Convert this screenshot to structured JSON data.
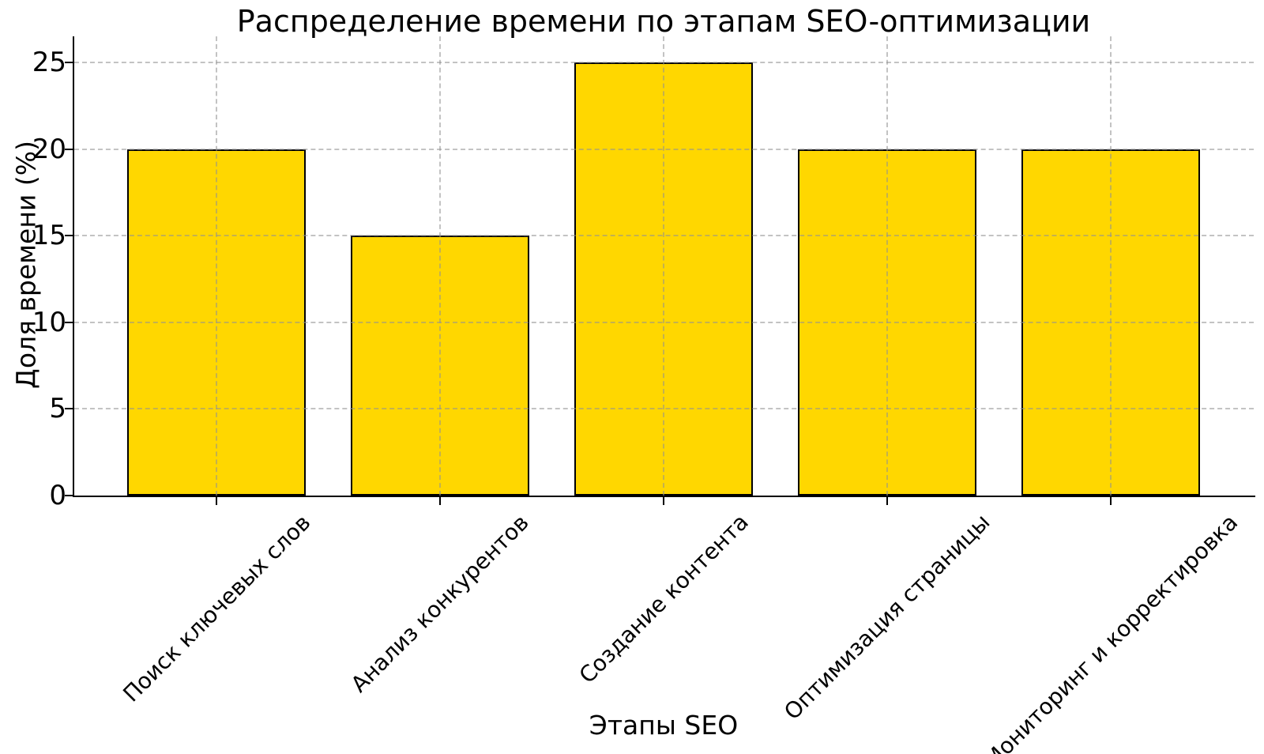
{
  "chart_data": {
    "type": "bar",
    "title": "Распределение времени по этапам SEO-оптимизации",
    "xlabel": "Этапы SEO",
    "ylabel": "Доля времени (%)",
    "categories": [
      "Поиск ключевых слов",
      "Анализ конкурентов",
      "Создание контента",
      "Оптимизация страницы",
      "Мониторинг и корректировка"
    ],
    "values": [
      20,
      15,
      25,
      20,
      20
    ],
    "yticks": [
      0,
      5,
      10,
      15,
      20,
      25
    ],
    "ylim": [
      0,
      26.5
    ],
    "bar_color": "#FFD700",
    "bar_edge_color": "#000000",
    "grid": {
      "style": "dashed",
      "axes": "both",
      "color": "#bdbdbd",
      "above_bars": true
    },
    "legend": null
  }
}
